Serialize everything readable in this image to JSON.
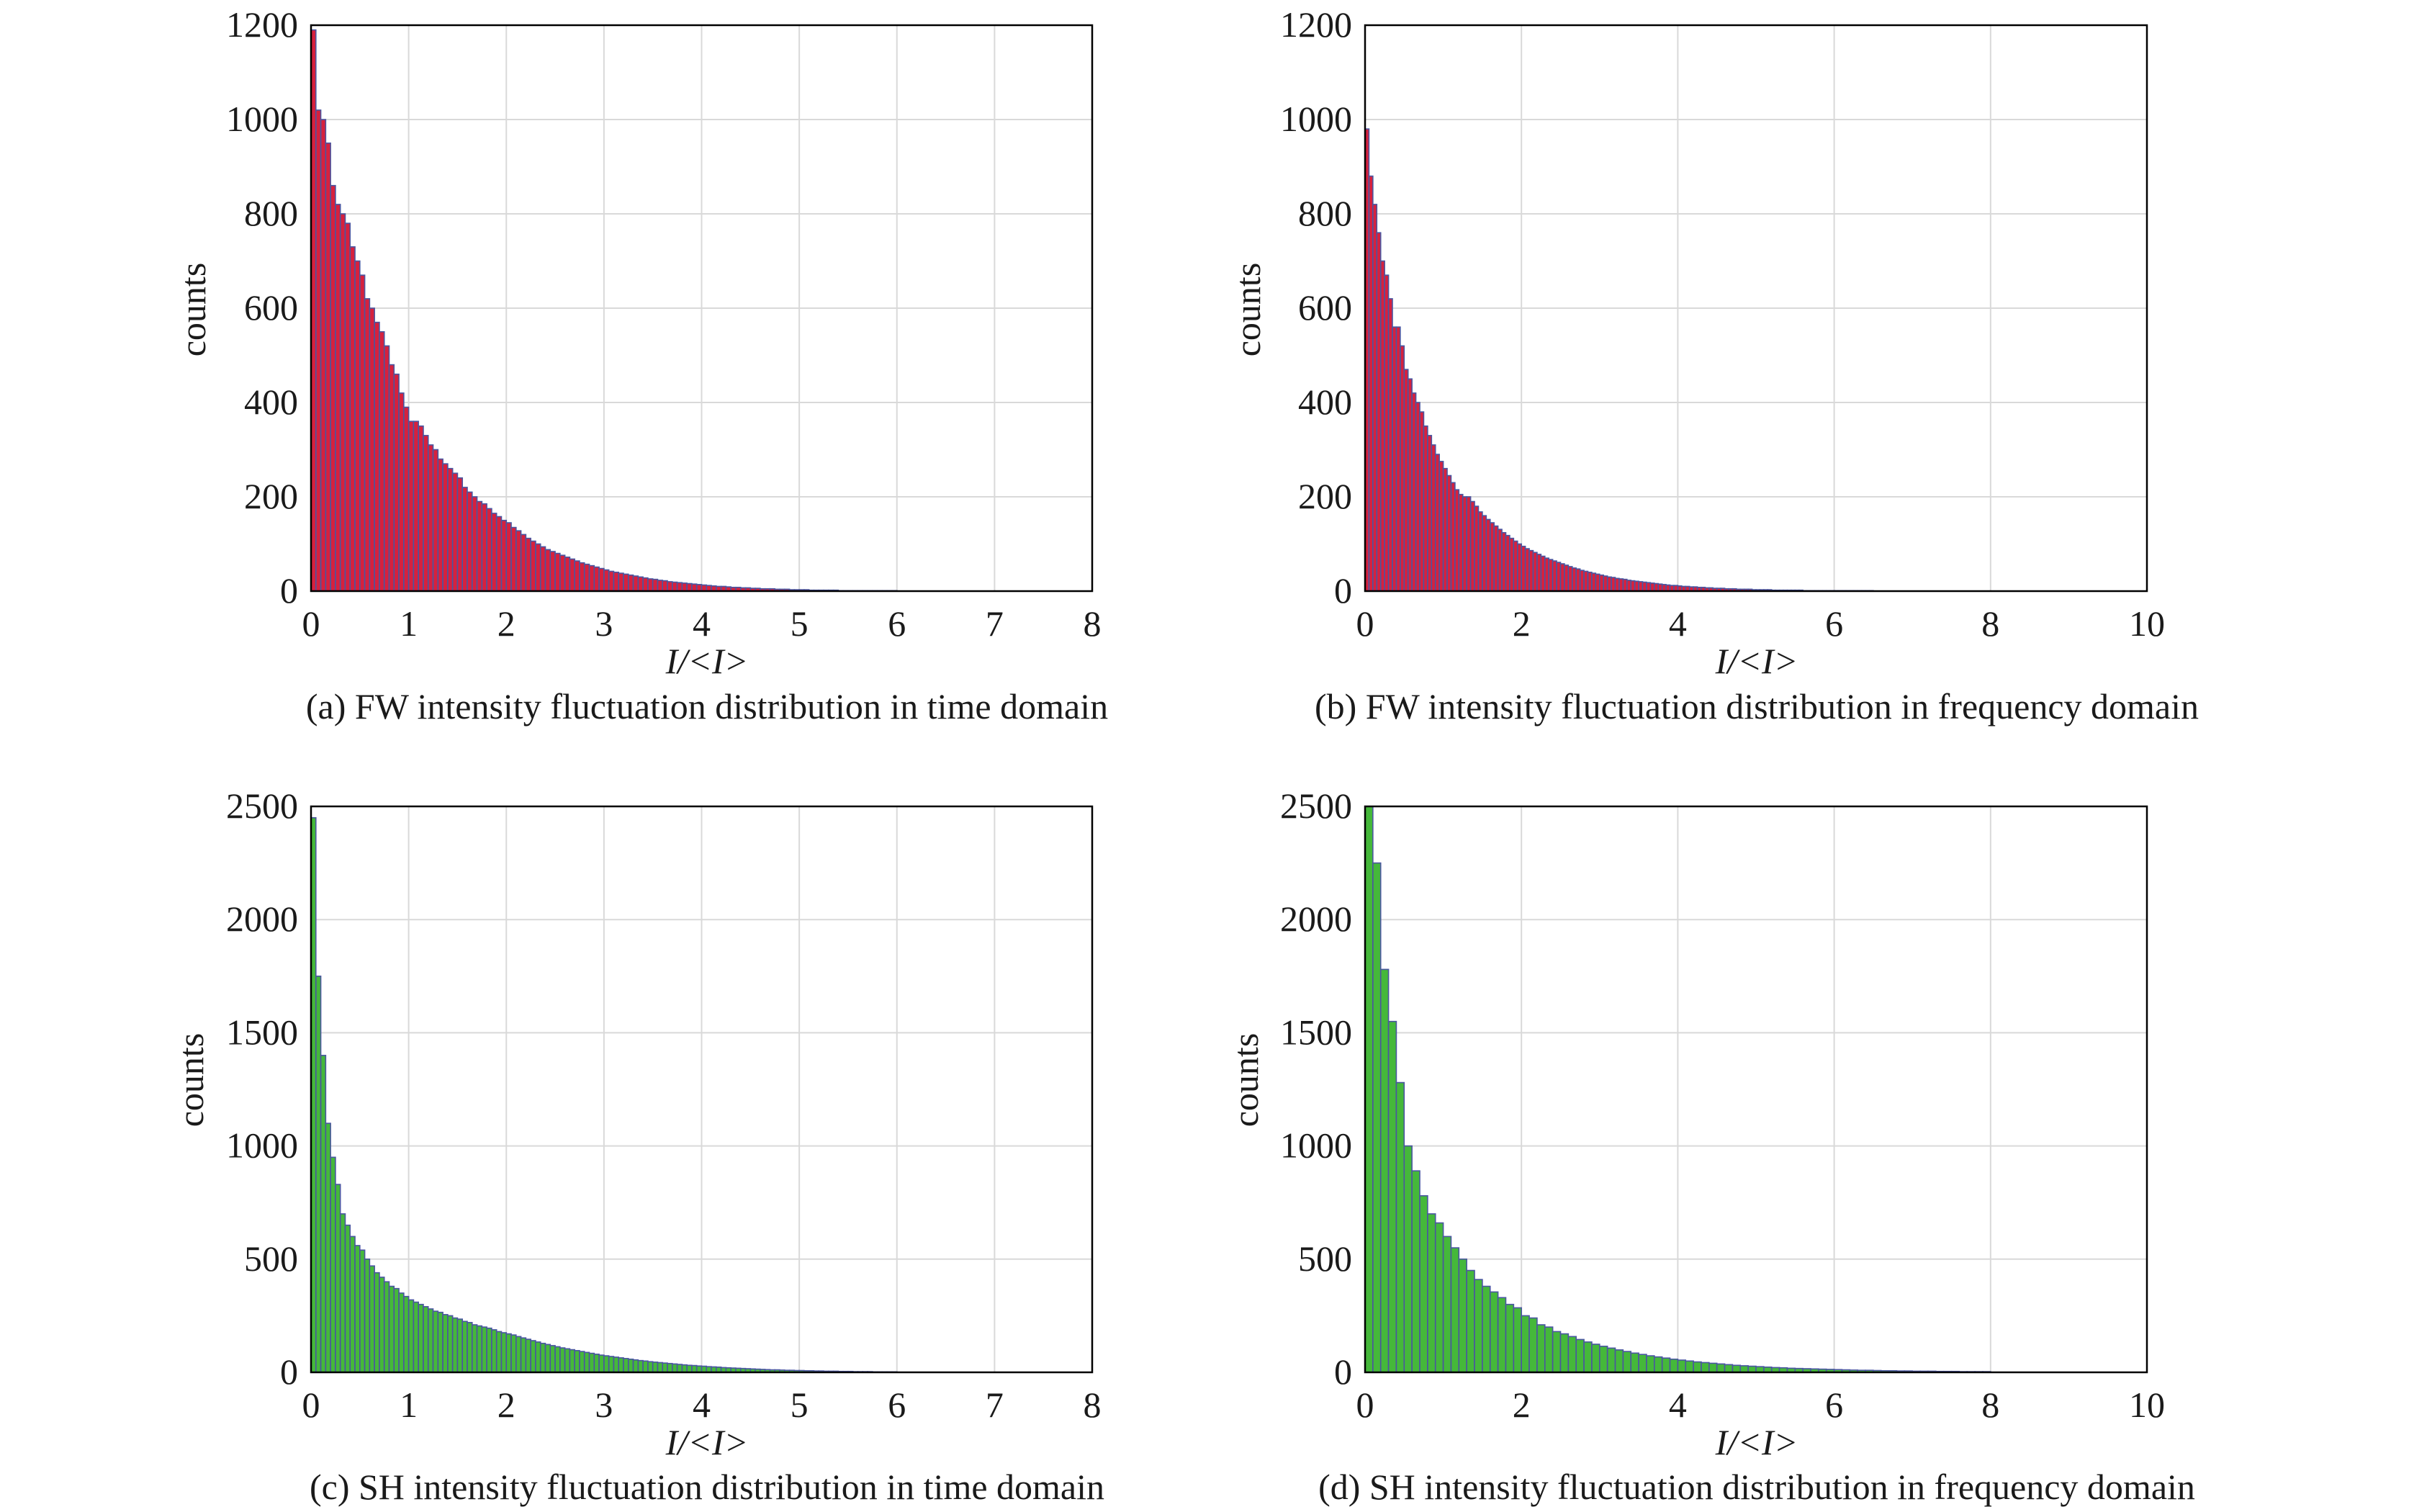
{
  "chart_data": [
    {
      "type": "bar",
      "id": "a",
      "caption": "(a) FW intensity fluctuation distribution in time domain",
      "xlabel": "I/<I>",
      "ylabel": "counts",
      "xlim": [
        0,
        8
      ],
      "ylim": [
        0,
        1200
      ],
      "xticks": [
        0,
        1,
        2,
        3,
        4,
        5,
        6,
        7,
        8
      ],
      "yticks": [
        0,
        200,
        400,
        600,
        800,
        1000,
        1200
      ],
      "grid": true,
      "bin_width": 0.05,
      "bar_color": "#d6213e",
      "edge_color": "#4a56a0",
      "x": [
        0.0,
        0.05,
        0.1,
        0.15,
        0.2,
        0.25,
        0.3,
        0.35,
        0.4,
        0.45,
        0.5,
        0.55,
        0.6,
        0.65,
        0.7,
        0.75,
        0.8,
        0.85,
        0.9,
        0.95,
        1.0,
        1.05,
        1.1,
        1.15,
        1.2,
        1.25,
        1.3,
        1.35,
        1.4,
        1.45,
        1.5,
        1.55,
        1.6,
        1.65,
        1.7,
        1.75,
        1.8,
        1.85,
        1.9,
        1.95,
        2.0,
        2.05,
        2.1,
        2.15,
        2.2,
        2.25,
        2.3,
        2.35,
        2.4,
        2.45,
        2.5,
        2.55,
        2.6,
        2.65,
        2.7,
        2.75,
        2.8,
        2.85,
        2.9,
        2.95,
        3.0,
        3.05,
        3.1,
        3.15,
        3.2,
        3.25,
        3.3,
        3.35,
        3.4,
        3.45,
        3.5,
        3.55,
        3.6,
        3.65,
        3.7,
        3.75,
        3.8,
        3.85,
        3.9,
        3.95,
        4.0,
        4.05,
        4.1,
        4.15,
        4.2,
        4.25,
        4.3,
        4.35,
        4.4,
        4.45,
        4.5,
        4.55,
        4.6,
        4.65,
        4.7,
        4.75,
        4.8,
        4.85,
        4.9,
        4.95,
        5.0,
        5.05,
        5.1,
        5.15,
        5.2,
        5.25,
        5.3,
        5.35,
        5.4,
        5.45,
        5.5,
        5.55,
        5.6,
        5.65,
        5.7,
        5.75,
        5.8,
        5.85,
        5.9,
        5.95
      ],
      "values": [
        1190,
        1020,
        1000,
        950,
        860,
        820,
        800,
        780,
        730,
        700,
        670,
        620,
        600,
        570,
        550,
        520,
        480,
        460,
        420,
        390,
        360,
        360,
        350,
        330,
        310,
        300,
        280,
        270,
        260,
        250,
        240,
        220,
        210,
        200,
        190,
        185,
        175,
        165,
        158,
        150,
        145,
        135,
        128,
        120,
        112,
        106,
        100,
        94,
        88,
        84,
        80,
        76,
        72,
        68,
        64,
        60,
        57,
        54,
        51,
        48,
        45,
        42,
        40,
        38,
        36,
        34,
        32,
        30,
        28,
        26,
        25,
        23,
        22,
        20,
        19,
        18,
        17,
        16,
        15,
        14,
        13,
        12,
        11,
        10,
        10,
        9,
        8,
        8,
        7,
        7,
        6,
        6,
        5,
        5,
        5,
        4,
        4,
        4,
        3,
        3,
        3,
        3,
        2,
        2,
        2,
        2,
        2,
        2,
        1,
        1,
        1,
        1,
        1,
        1,
        1,
        1,
        1,
        1,
        1,
        1
      ]
    },
    {
      "type": "bar",
      "id": "b",
      "caption": "(b) FW intensity fluctuation distribution in frequency domain",
      "xlabel": "I/<I>",
      "ylabel": "counts",
      "xlim": [
        0,
        10
      ],
      "ylim": [
        0,
        1200
      ],
      "xticks": [
        0,
        2,
        4,
        6,
        8,
        10
      ],
      "yticks": [
        0,
        200,
        400,
        600,
        800,
        1000,
        1200
      ],
      "grid": true,
      "bin_width": 0.05,
      "bar_color": "#d6213e",
      "edge_color": "#4a56a0",
      "x": [
        0.0,
        0.05,
        0.1,
        0.15,
        0.2,
        0.25,
        0.3,
        0.35,
        0.4,
        0.45,
        0.5,
        0.55,
        0.6,
        0.65,
        0.7,
        0.75,
        0.8,
        0.85,
        0.9,
        0.95,
        1.0,
        1.05,
        1.1,
        1.15,
        1.2,
        1.25,
        1.3,
        1.35,
        1.4,
        1.45,
        1.5,
        1.55,
        1.6,
        1.65,
        1.7,
        1.75,
        1.8,
        1.85,
        1.9,
        1.95,
        2.0,
        2.05,
        2.1,
        2.15,
        2.2,
        2.25,
        2.3,
        2.35,
        2.4,
        2.45,
        2.5,
        2.55,
        2.6,
        2.65,
        2.7,
        2.75,
        2.8,
        2.85,
        2.9,
        2.95,
        3.0,
        3.05,
        3.1,
        3.15,
        3.2,
        3.25,
        3.3,
        3.35,
        3.4,
        3.45,
        3.5,
        3.55,
        3.6,
        3.65,
        3.7,
        3.75,
        3.8,
        3.85,
        3.9,
        3.95,
        4.0,
        4.05,
        4.1,
        4.15,
        4.2,
        4.25,
        4.3,
        4.35,
        4.4,
        4.45,
        4.5,
        4.55,
        4.6,
        4.65,
        4.7,
        4.75,
        4.8,
        4.85,
        4.9,
        4.95,
        5.0,
        5.05,
        5.1,
        5.15,
        5.2,
        5.25,
        5.3,
        5.35,
        5.4,
        5.45,
        5.5,
        5.55,
        5.6,
        5.65,
        5.7,
        5.75,
        5.8,
        5.85,
        5.9,
        5.95,
        6.0,
        6.05,
        6.1,
        6.15,
        6.2,
        6.25,
        6.3,
        6.35,
        6.4,
        6.45
      ],
      "values": [
        980,
        880,
        820,
        760,
        700,
        670,
        620,
        560,
        560,
        520,
        470,
        450,
        420,
        400,
        380,
        350,
        330,
        310,
        290,
        275,
        260,
        245,
        230,
        215,
        205,
        200,
        200,
        190,
        180,
        168,
        160,
        152,
        145,
        138,
        131,
        124,
        118,
        112,
        106,
        100,
        95,
        90,
        86,
        82,
        78,
        74,
        70,
        67,
        64,
        61,
        58,
        55,
        52,
        49,
        47,
        44,
        42,
        40,
        38,
        36,
        34,
        32,
        30,
        29,
        27,
        26,
        25,
        23,
        22,
        21,
        20,
        19,
        18,
        17,
        16,
        15,
        14,
        13,
        12,
        12,
        11,
        10,
        10,
        9,
        9,
        8,
        8,
        7,
        7,
        6,
        6,
        6,
        5,
        5,
        5,
        4,
        4,
        4,
        4,
        3,
        3,
        3,
        3,
        3,
        2,
        2,
        2,
        2,
        2,
        2,
        2,
        2,
        1,
        1,
        1,
        1,
        1,
        1,
        1,
        1,
        1,
        1,
        1,
        1,
        1,
        1,
        1,
        1,
        1,
        1
      ]
    },
    {
      "type": "bar",
      "id": "c",
      "caption": "(c) SH intensity fluctuation distribution in time domain",
      "xlabel": "I/<I>",
      "ylabel": "counts",
      "xlim": [
        0,
        8
      ],
      "ylim": [
        0,
        2500
      ],
      "xticks": [
        0,
        1,
        2,
        3,
        4,
        5,
        6,
        7,
        8
      ],
      "yticks": [
        0,
        500,
        1000,
        1500,
        2000,
        2500
      ],
      "grid": true,
      "bin_width": 0.05,
      "bar_color": "#45b83a",
      "edge_color": "#4a56a0",
      "x": [
        0.0,
        0.05,
        0.1,
        0.15,
        0.2,
        0.25,
        0.3,
        0.35,
        0.4,
        0.45,
        0.5,
        0.55,
        0.6,
        0.65,
        0.7,
        0.75,
        0.8,
        0.85,
        0.9,
        0.95,
        1.0,
        1.05,
        1.1,
        1.15,
        1.2,
        1.25,
        1.3,
        1.35,
        1.4,
        1.45,
        1.5,
        1.55,
        1.6,
        1.65,
        1.7,
        1.75,
        1.8,
        1.85,
        1.9,
        1.95,
        2.0,
        2.05,
        2.1,
        2.15,
        2.2,
        2.25,
        2.3,
        2.35,
        2.4,
        2.45,
        2.5,
        2.55,
        2.6,
        2.65,
        2.7,
        2.75,
        2.8,
        2.85,
        2.9,
        2.95,
        3.0,
        3.05,
        3.1,
        3.15,
        3.2,
        3.25,
        3.3,
        3.35,
        3.4,
        3.45,
        3.5,
        3.55,
        3.6,
        3.65,
        3.7,
        3.75,
        3.8,
        3.85,
        3.9,
        3.95,
        4.0,
        4.05,
        4.1,
        4.15,
        4.2,
        4.25,
        4.3,
        4.35,
        4.4,
        4.45,
        4.5,
        4.55,
        4.6,
        4.65,
        4.7,
        4.75,
        4.8,
        4.85,
        4.9,
        4.95,
        5.0,
        5.05,
        5.1,
        5.15,
        5.2,
        5.25,
        5.3,
        5.35,
        5.4,
        5.45,
        5.5,
        5.55,
        5.6,
        5.65,
        5.7,
        5.75,
        5.8,
        5.85,
        5.9,
        5.95
      ],
      "values": [
        2450,
        1750,
        1400,
        1100,
        950,
        830,
        700,
        650,
        600,
        560,
        540,
        500,
        470,
        440,
        420,
        400,
        380,
        370,
        350,
        335,
        320,
        310,
        300,
        290,
        280,
        270,
        265,
        255,
        250,
        240,
        235,
        225,
        220,
        210,
        205,
        200,
        195,
        188,
        180,
        175,
        170,
        165,
        158,
        152,
        146,
        140,
        134,
        128,
        123,
        118,
        113,
        108,
        104,
        100,
        96,
        92,
        88,
        84,
        80,
        76,
        73,
        70,
        67,
        64,
        61,
        58,
        55,
        52,
        50,
        47,
        45,
        43,
        41,
        39,
        37,
        35,
        33,
        31,
        30,
        28,
        27,
        25,
        24,
        23,
        21,
        20,
        19,
        18,
        17,
        16,
        15,
        14,
        13,
        12,
        11,
        11,
        10,
        9,
        9,
        8,
        8,
        7,
        7,
        6,
        6,
        5,
        5,
        5,
        4,
        4,
        4,
        3,
        3,
        3,
        3,
        2,
        2,
        2,
        2,
        2
      ]
    },
    {
      "type": "bar",
      "id": "d",
      "caption": "(d) SH intensity fluctuation distribution in frequency domain",
      "xlabel": "I/<I>",
      "ylabel": "counts",
      "xlim": [
        0,
        10
      ],
      "ylim": [
        0,
        2500
      ],
      "xticks": [
        0,
        2,
        4,
        6,
        8,
        10
      ],
      "yticks": [
        0,
        500,
        1000,
        1500,
        2000,
        2500
      ],
      "grid": true,
      "bin_width": 0.1,
      "bar_color": "#45b83a",
      "edge_color": "#4a56a0",
      "x": [
        0.0,
        0.1,
        0.2,
        0.3,
        0.4,
        0.5,
        0.6,
        0.7,
        0.8,
        0.9,
        1.0,
        1.1,
        1.2,
        1.3,
        1.4,
        1.5,
        1.6,
        1.7,
        1.8,
        1.9,
        2.0,
        2.1,
        2.2,
        2.3,
        2.4,
        2.5,
        2.6,
        2.7,
        2.8,
        2.9,
        3.0,
        3.1,
        3.2,
        3.3,
        3.4,
        3.5,
        3.6,
        3.7,
        3.8,
        3.9,
        4.0,
        4.1,
        4.2,
        4.3,
        4.4,
        4.5,
        4.6,
        4.7,
        4.8,
        4.9,
        5.0,
        5.1,
        5.2,
        5.3,
        5.4,
        5.5,
        5.6,
        5.7,
        5.8,
        5.9,
        6.0,
        6.1,
        6.2,
        6.3,
        6.4,
        6.5,
        6.6,
        6.7,
        6.8,
        6.9,
        7.0,
        7.1,
        7.2,
        7.3,
        7.4,
        7.5,
        7.6,
        7.7,
        7.8,
        7.9
      ],
      "values": [
        2500,
        2250,
        1780,
        1550,
        1280,
        1000,
        890,
        780,
        700,
        660,
        600,
        550,
        500,
        450,
        410,
        380,
        355,
        330,
        300,
        285,
        250,
        240,
        210,
        200,
        180,
        170,
        158,
        145,
        134,
        124,
        115,
        107,
        99,
        92,
        85,
        79,
        73,
        68,
        63,
        58,
        54,
        50,
        46,
        43,
        40,
        37,
        34,
        31,
        29,
        27,
        25,
        23,
        21,
        20,
        18,
        17,
        16,
        15,
        14,
        13,
        12,
        11,
        10,
        9,
        9,
        8,
        7,
        7,
        6,
        6,
        5,
        5,
        5,
        4,
        4,
        4,
        3,
        3,
        3,
        3
      ]
    }
  ]
}
